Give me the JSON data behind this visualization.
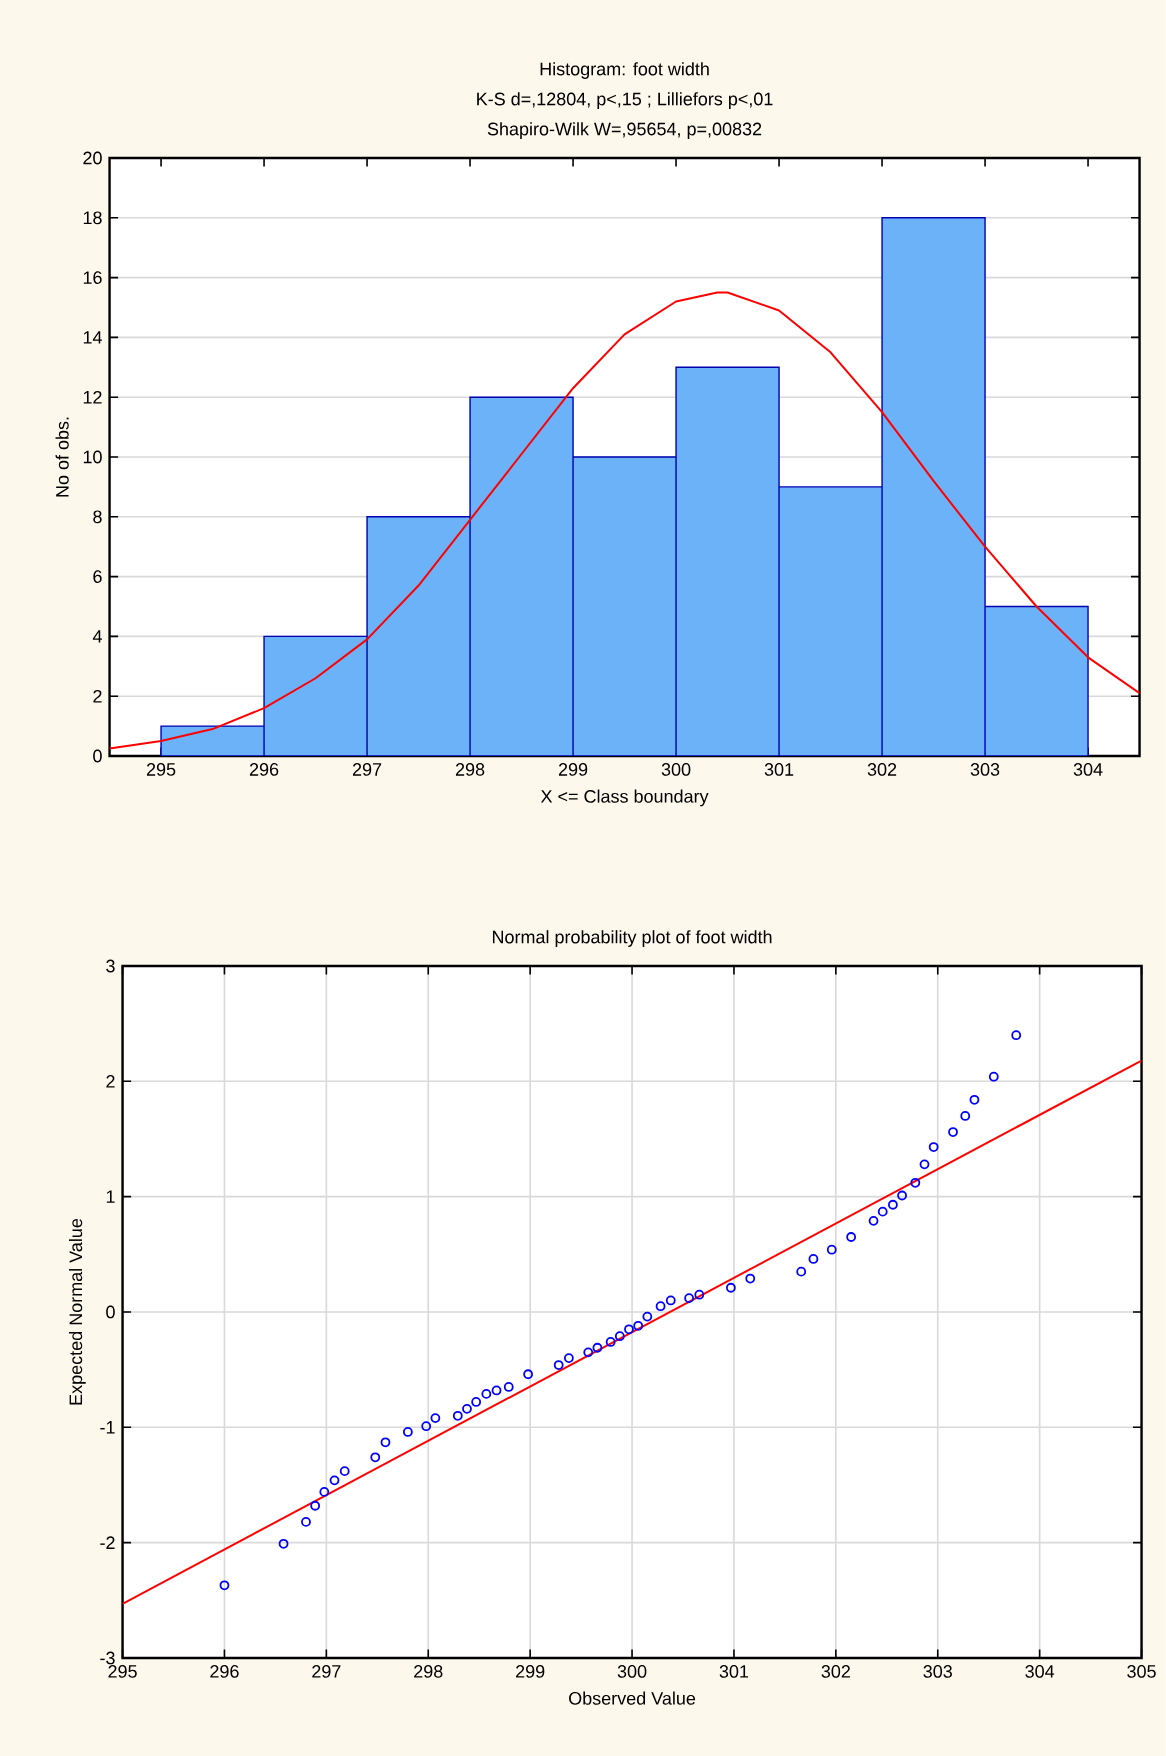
{
  "chart_data": [
    {
      "type": "histogram",
      "title": "Histogram: foot width",
      "subtitle": "K-S d=,12804, p<,15 ; Lilliefors p<,01",
      "annotations": [
        "Shapiro-Wilk W=,95654, p=,00832"
      ],
      "xlabel": "X <= Class boundary",
      "ylabel": "No of obs.",
      "bins": [
        295,
        296,
        297,
        298,
        299,
        300,
        301,
        302,
        303,
        304
      ],
      "values": [
        1,
        4,
        8,
        12,
        10,
        13,
        9,
        18,
        5
      ],
      "color": "#6cb2f8",
      "xlim": [
        294.5,
        304.5
      ],
      "ylim": [
        0,
        20
      ],
      "xticks": [
        295,
        296,
        297,
        298,
        299,
        300,
        301,
        302,
        303,
        304
      ],
      "yticks": [
        0,
        2,
        4,
        6,
        8,
        10,
        12,
        14,
        16,
        18,
        20
      ],
      "grid": "y",
      "series": [
        {
          "type": "line",
          "color": "#ff0000",
          "x": [
            294.5,
            295,
            295.5,
            296,
            296.5,
            297,
            297.5,
            298,
            298.5,
            299,
            299.5,
            300,
            300.4,
            300.5,
            301,
            301.5,
            302,
            302.5,
            303,
            303.5,
            304,
            304.5
          ],
          "values": [
            0.25,
            0.5,
            0.9,
            1.6,
            2.6,
            3.9,
            5.7,
            7.9,
            10.1,
            12.3,
            14.1,
            15.2,
            15.5,
            15.5,
            14.9,
            13.5,
            11.5,
            9.2,
            7.0,
            5.0,
            3.3,
            2.1
          ]
        }
      ]
    },
    {
      "type": "scatter",
      "title": "Normal probability plot of foot width",
      "xlabel": "Observed Value",
      "ylabel": "Expected Normal Value",
      "xlim": [
        295,
        305
      ],
      "ylim": [
        -3,
        3
      ],
      "xticks": [
        295,
        296,
        297,
        298,
        299,
        300,
        301,
        302,
        303,
        304,
        305
      ],
      "yticks": [
        -3,
        -2,
        -1,
        0,
        1,
        2,
        3
      ],
      "grid": true,
      "series": [
        {
          "type": "scatter",
          "color": "#0000ff",
          "marker": "circle",
          "x": [
            296.0,
            296.58,
            296.8,
            296.89,
            296.98,
            297.08,
            297.18,
            297.48,
            297.58,
            297.8,
            297.98,
            298.07,
            298.29,
            298.38,
            298.47,
            298.57,
            298.67,
            298.79,
            298.98,
            299.28,
            299.38,
            299.57,
            299.66,
            299.79,
            299.88,
            299.97,
            300.06,
            300.15,
            300.28,
            300.38,
            300.56,
            300.66,
            300.97,
            301.16,
            301.66,
            301.78,
            301.96,
            302.15,
            302.37,
            302.46,
            302.56,
            302.65,
            302.78,
            302.87,
            302.96,
            303.15,
            303.27,
            303.36,
            303.55,
            303.77
          ],
          "values": [
            -2.37,
            -2.01,
            -1.82,
            -1.68,
            -1.56,
            -1.46,
            -1.38,
            -1.26,
            -1.13,
            -1.04,
            -0.99,
            -0.92,
            -0.9,
            -0.84,
            -0.78,
            -0.71,
            -0.68,
            -0.65,
            -0.54,
            -0.46,
            -0.4,
            -0.35,
            -0.31,
            -0.26,
            -0.21,
            -0.15,
            -0.12,
            -0.04,
            0.05,
            0.1,
            0.12,
            0.15,
            0.21,
            0.29,
            0.35,
            0.46,
            0.54,
            0.65,
            0.79,
            0.87,
            0.93,
            1.01,
            1.12,
            1.28,
            1.43,
            1.56,
            1.7,
            1.84,
            2.04,
            2.4
          ]
        },
        {
          "type": "line",
          "color": "#ff0000",
          "x": [
            295,
            305
          ],
          "values": [
            -2.53,
            2.18
          ]
        }
      ]
    }
  ]
}
